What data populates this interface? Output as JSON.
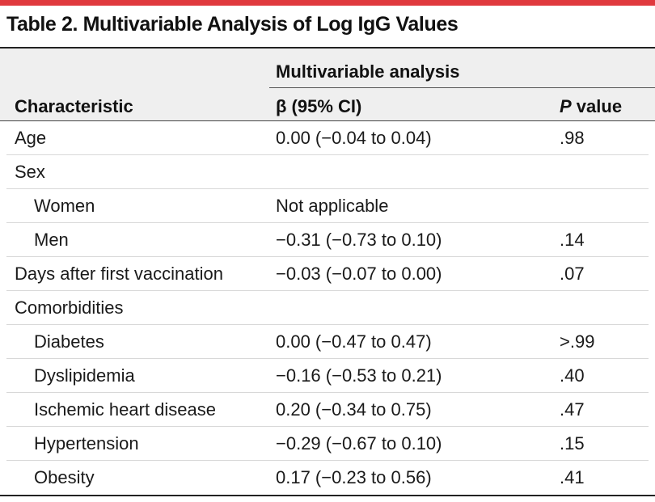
{
  "title": "Table 2. Multivariable Analysis of Log IgG Values",
  "header": {
    "group_label": "Multivariable analysis",
    "col_characteristic": "Characteristic",
    "col_beta": "β (95% CI)",
    "col_p_italic": "P",
    "col_p_rest": " value"
  },
  "rows": [
    {
      "label": "Age",
      "beta": "0.00 (−0.04 to 0.04)",
      "p": ".98"
    },
    {
      "label": "Sex",
      "beta": "",
      "p": ""
    },
    {
      "label": "Women",
      "beta": "Not applicable",
      "p": ""
    },
    {
      "label": "Men",
      "beta": "−0.31 (−0.73 to 0.10)",
      "p": ".14"
    },
    {
      "label": "Days after first vaccination",
      "beta": "−0.03 (−0.07 to 0.00)",
      "p": ".07"
    },
    {
      "label": "Comorbidities",
      "beta": "",
      "p": ""
    },
    {
      "label": "Diabetes",
      "beta": "0.00 (−0.47 to 0.47)",
      "p": ">.99"
    },
    {
      "label": "Dyslipidemia",
      "beta": "−0.16 (−0.53 to 0.21)",
      "p": ".40"
    },
    {
      "label": "Ischemic heart disease",
      "beta": "0.20 (−0.34 to 0.75)",
      "p": ".47"
    },
    {
      "label": "Hypertension",
      "beta": "−0.29 (−0.67 to 0.10)",
      "p": ".15"
    },
    {
      "label": "Obesity",
      "beta": "0.17 (−0.23 to 0.56)",
      "p": ".41"
    }
  ],
  "colors": {
    "accent": "#e0393e",
    "header_band": "#efefef"
  }
}
